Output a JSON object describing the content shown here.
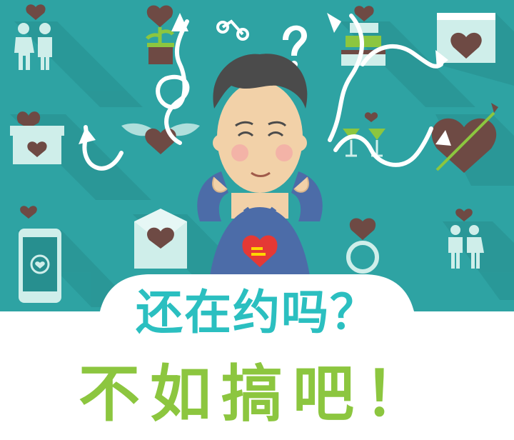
{
  "headline": {
    "line1": "还在约吗？",
    "line2": "不如搞吧！"
  },
  "colors": {
    "background_teal": "#2ea3a3",
    "shadow_teal": "#278f8f",
    "heart_brown": "#6e4a44",
    "icon_light": "#cfeeea",
    "shirt_blue": "#4c6ca8",
    "skin": "#f2d1a8",
    "hair": "#4b4b4b",
    "line1_color": "#2bbfc0",
    "line2_color": "#8cc63f"
  },
  "icons": [
    "couple-icon",
    "plant-heart-icon",
    "bicycle-icon",
    "cake-heart-icon",
    "calendar-heart-icon",
    "gift-heart-icon",
    "winged-heart-icon",
    "cocktails-heart-icon",
    "arrow-heart-icon",
    "phone-heart-icon",
    "envelope-heart-icon",
    "ring-heart-icon",
    "couple-hands-icon"
  ],
  "badge": {
    "icon": "heart-logo-icon"
  }
}
